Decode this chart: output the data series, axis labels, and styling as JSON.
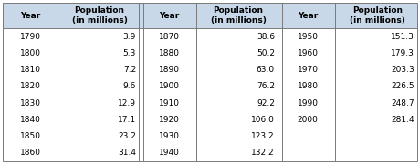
{
  "header_bg": "#c8d8e8",
  "header_text_color": "#000000",
  "body_bg": "#ffffff",
  "border_color": "#7a7a7a",
  "col1_years": [
    "1790",
    "1800",
    "1810",
    "1820",
    "1830",
    "1840",
    "1850",
    "1860"
  ],
  "col1_pop": [
    "3.9",
    "5.3",
    "7.2",
    "9.6",
    "12.9",
    "17.1",
    "23.2",
    "31.4"
  ],
  "col2_years": [
    "1870",
    "1880",
    "1890",
    "1900",
    "1910",
    "1920",
    "1930",
    "1940"
  ],
  "col2_pop": [
    "38.6",
    "50.2",
    "63.0",
    "76.2",
    "92.2",
    "106.0",
    "123.2",
    "132.2"
  ],
  "col3_years": [
    "1950",
    "1960",
    "1970",
    "1980",
    "1990",
    "2000",
    "",
    ""
  ],
  "col3_pop": [
    "151.3",
    "179.3",
    "203.3",
    "226.5",
    "248.7",
    "281.4",
    "",
    ""
  ],
  "header_font_size": 6.5,
  "body_font_size": 6.5
}
